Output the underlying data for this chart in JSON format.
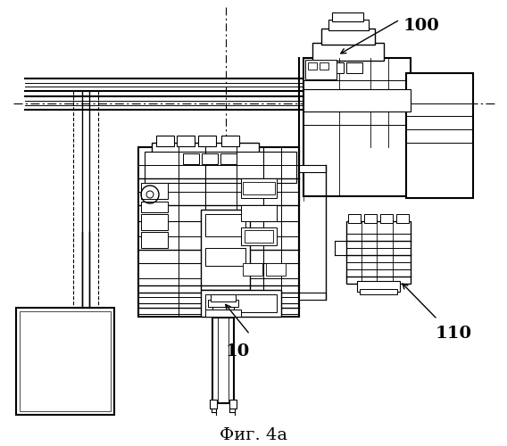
{
  "title": "Фиг. 4a",
  "label_100": "100",
  "label_10": "10",
  "label_110": "110",
  "bg_color": "#ffffff",
  "line_color": "#000000",
  "fig_width": 5.68,
  "fig_height": 5.0,
  "dpi": 100
}
